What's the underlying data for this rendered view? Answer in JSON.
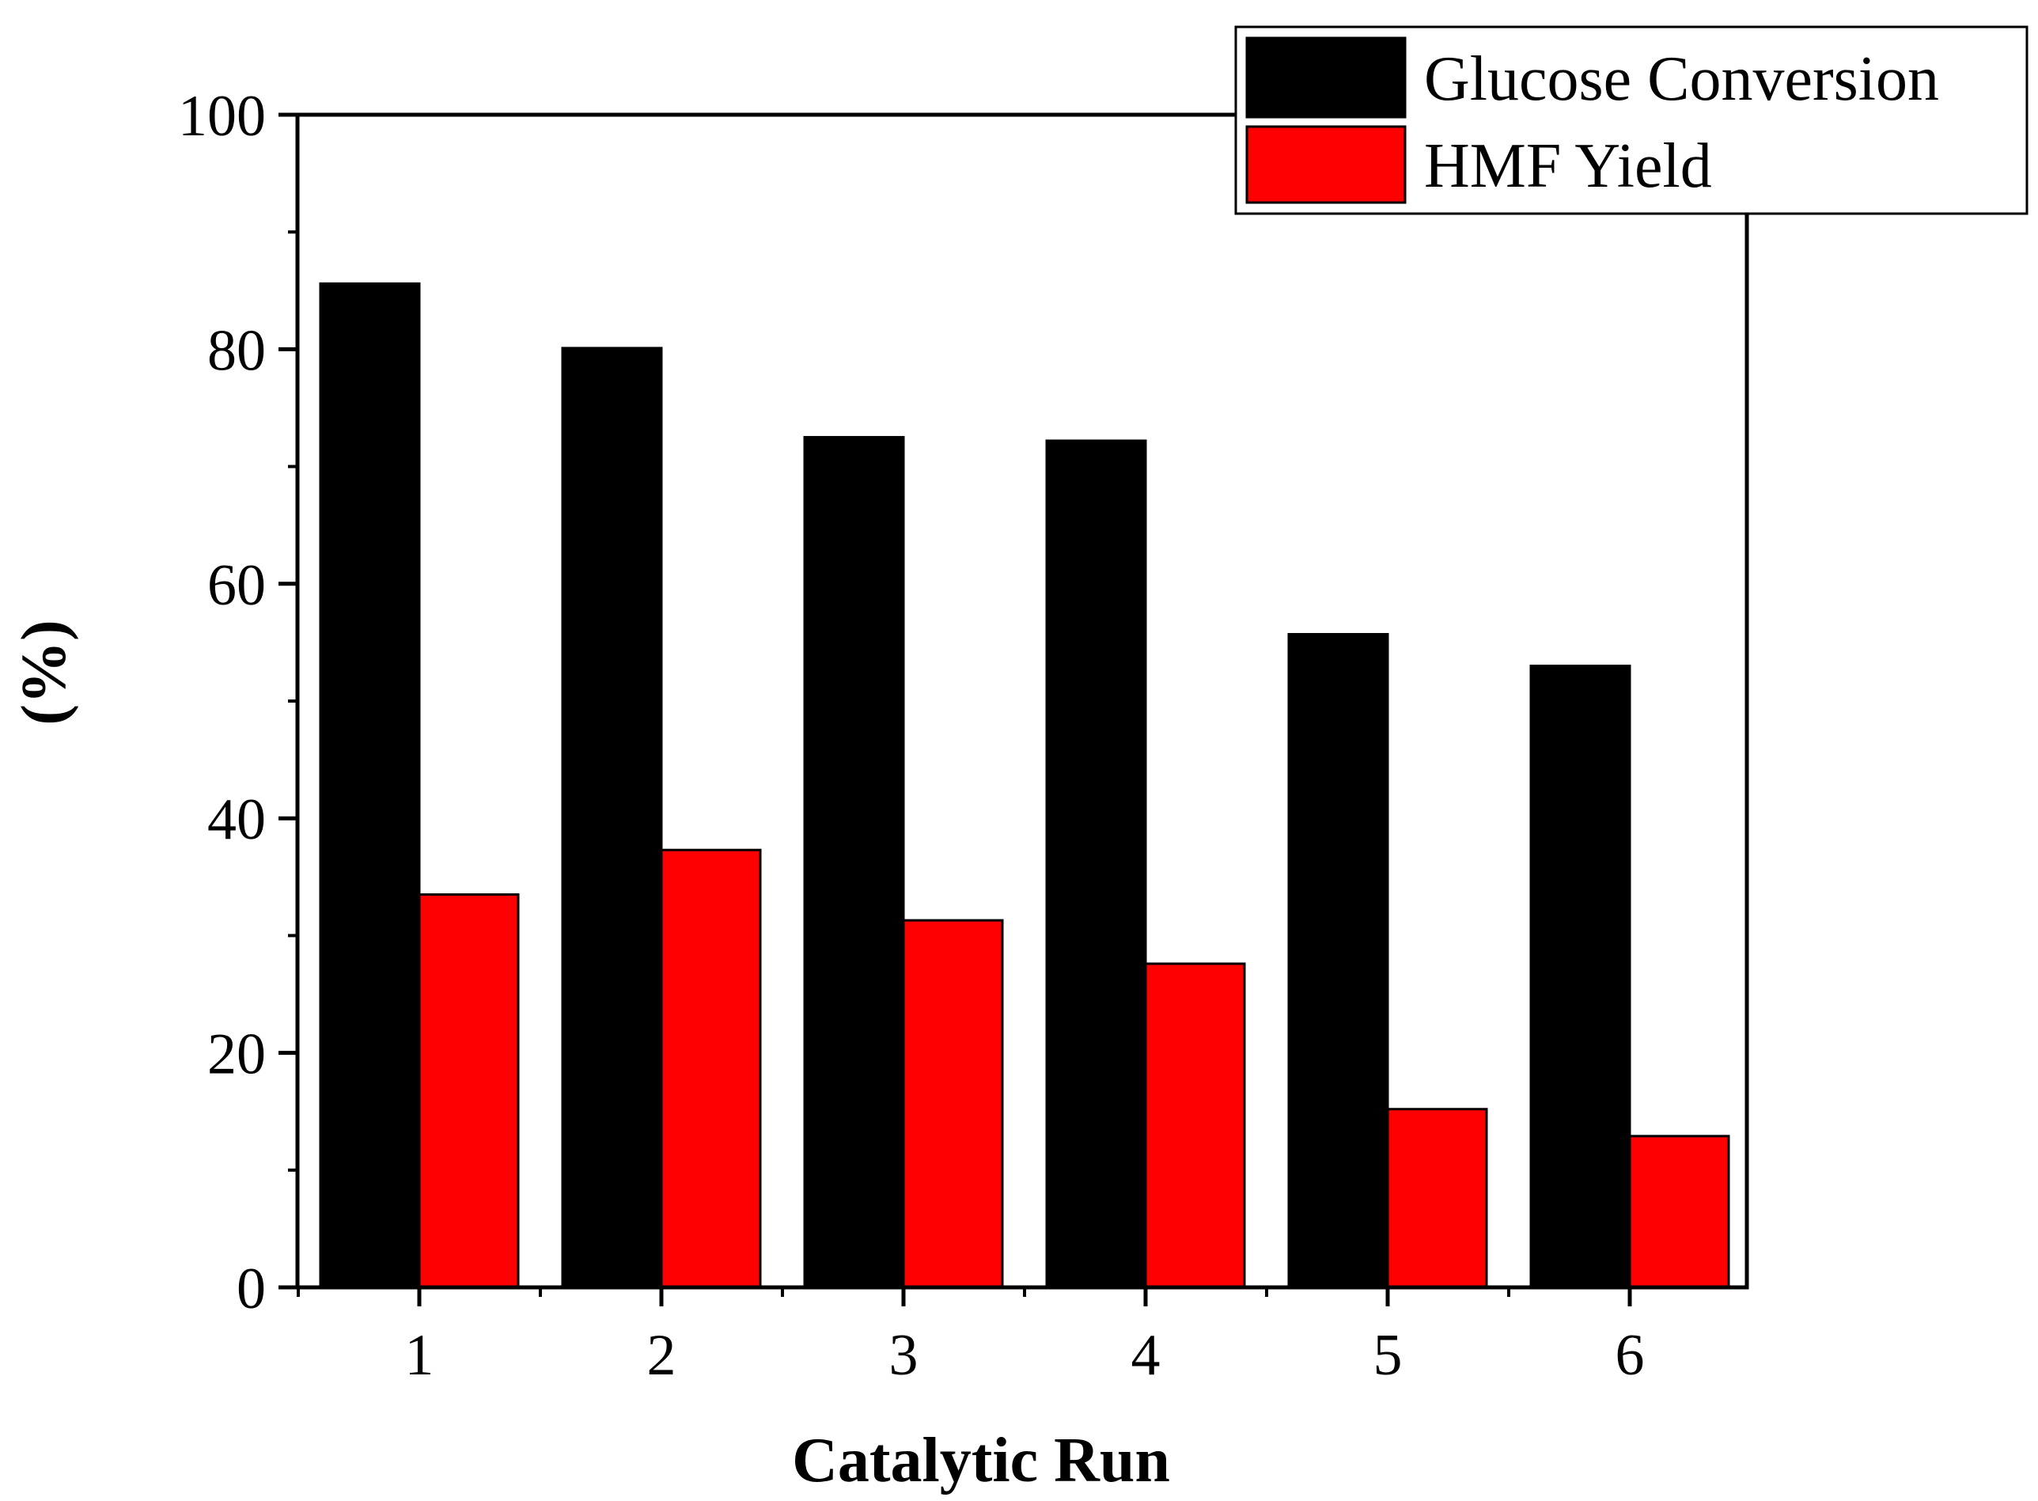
{
  "chart_data": {
    "type": "bar",
    "title": "",
    "xlabel": "Catalytic Run",
    "ylabel": "(%)",
    "categories": [
      "1",
      "2",
      "3",
      "4",
      "5",
      "6"
    ],
    "series": [
      {
        "name": "Glucose Conversion",
        "color": "#000000",
        "values": [
          85.6,
          80.1,
          72.5,
          72.2,
          55.7,
          53.0
        ]
      },
      {
        "name": "HMF Yield",
        "color": "#ff0000",
        "values": [
          33.5,
          37.3,
          31.3,
          27.6,
          15.2,
          12.9
        ]
      }
    ],
    "ylim": [
      0,
      100
    ],
    "yticks": [
      "0",
      "20",
      "40",
      "60",
      "80",
      "100"
    ],
    "grid": false,
    "legend_position": "top-right"
  }
}
